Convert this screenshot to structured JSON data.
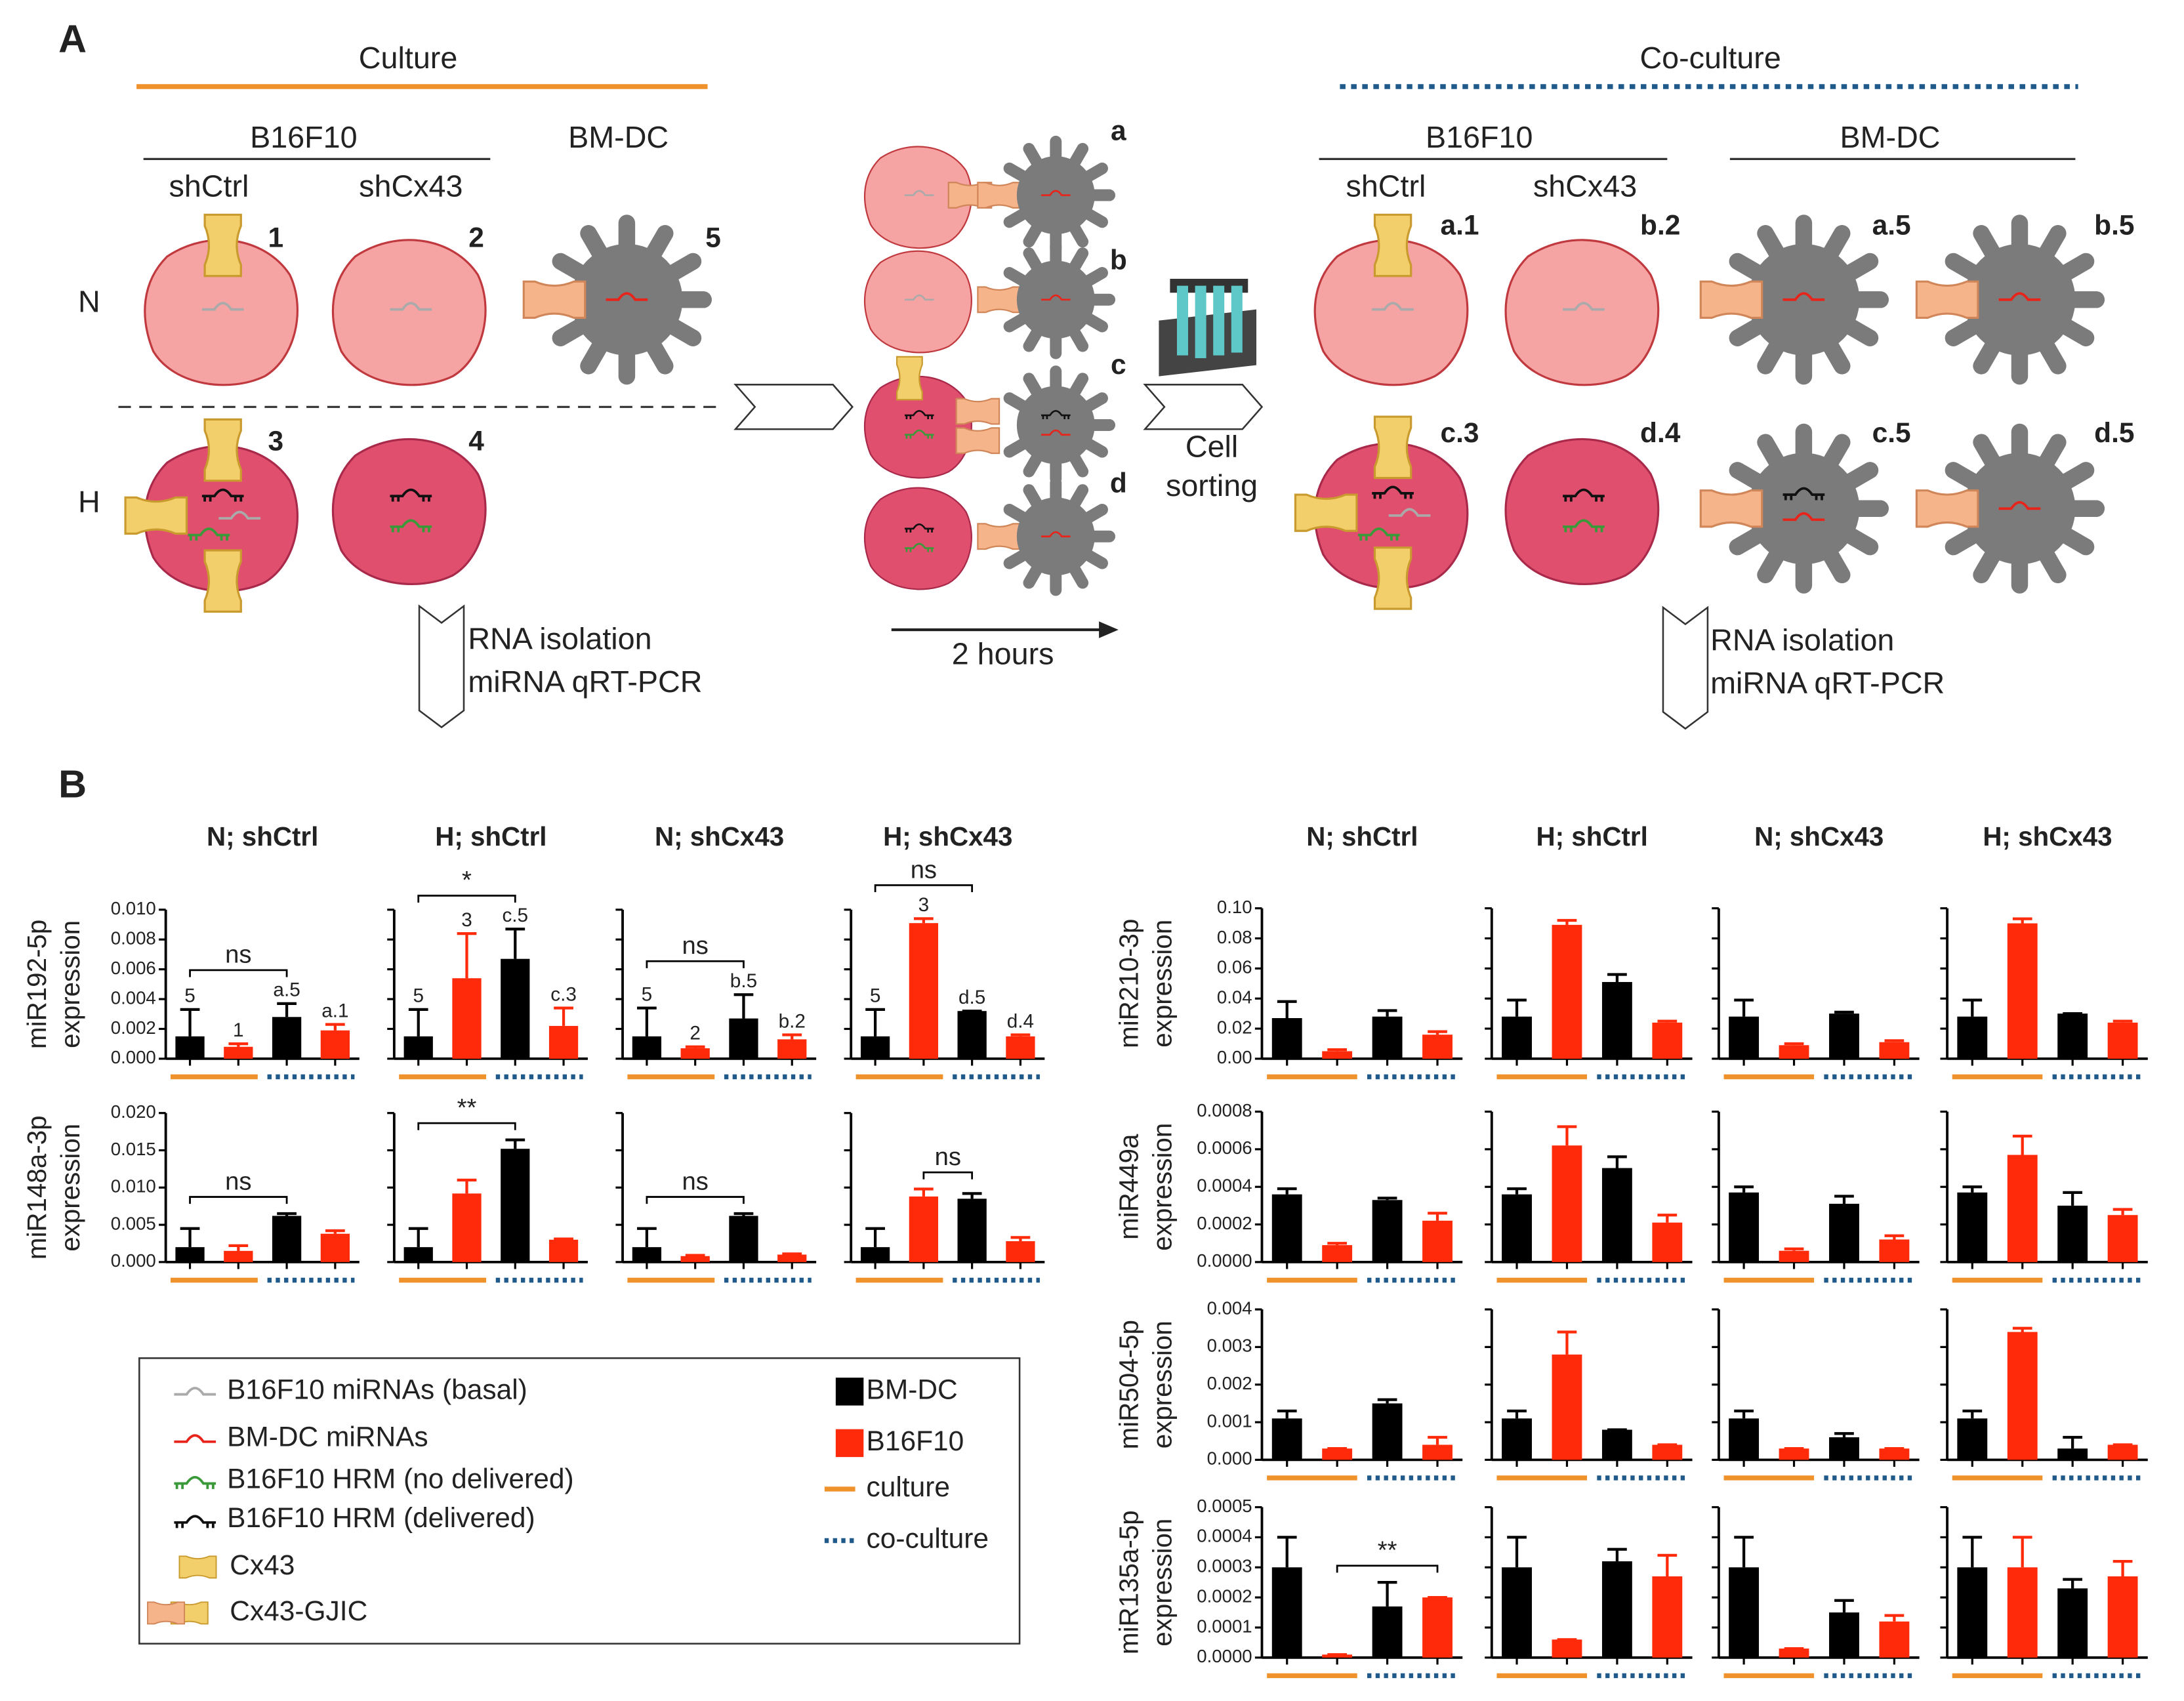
{
  "panel_a": {
    "label": "A",
    "culture": "Culture",
    "coculture": "Co-culture",
    "culture_groups": {
      "tumor": "B16F10",
      "dc": "BM-DC",
      "shctrl": "shCtrl",
      "shcx43": "shCx43"
    },
    "conditions": [
      "N",
      "H"
    ],
    "culture_ids": [
      "1",
      "2",
      "5",
      "3",
      "4"
    ],
    "interaction_ids": [
      "a",
      "b",
      "c",
      "d"
    ],
    "interaction_time": "2 hours",
    "sorting": [
      "Cell",
      "sorting"
    ],
    "coculture_groups": {
      "tumor": "B16F10",
      "dc": "BM-DC",
      "shctrl": "shCtrl",
      "shcx43": "shCx43"
    },
    "coculture_ids": [
      "a.1",
      "b.2",
      "a.5",
      "b.5",
      "c.3",
      "d.4",
      "c.5",
      "d.5"
    ],
    "analysis": [
      "RNA isolation",
      "miRNA qRT-PCR"
    ]
  },
  "panel_b": {
    "label": "B",
    "legend": {
      "diagram": [
        "B16F10 miRNAs (basal)",
        "BM-DC miRNAs",
        "B16F10 HRM (no delivered)",
        "B16F10 HRM (delivered)",
        "Cx43",
        "Cx43-GJIC"
      ],
      "marks": [
        {
          "label": "BM-DC",
          "color": "#000000"
        },
        {
          "label": "B16F10",
          "color": "#ff2a0a"
        },
        {
          "label": "culture",
          "color": "#f0922b"
        },
        {
          "label": "co-culture",
          "color": "#1f5a8a"
        }
      ]
    }
  },
  "chart_data": [
    {
      "type": "bar",
      "title": "N; shCtrl",
      "ylabel": [
        "miR192-5p",
        "expression"
      ],
      "ylim": [
        0,
        0.01
      ],
      "yticks": [
        {
          "value": 0,
          "label": "0.000"
        },
        0.002,
        0.004,
        0.006,
        0.008,
        {
          "value": 0.01,
          "label": "0.010"
        }
      ],
      "values": [
        0.0015,
        0.0008,
        0.0028,
        0.0019
      ],
      "errors": [
        0.0018,
        0.0002,
        0.0009,
        0.0004
      ],
      "colors": [
        "#000000",
        "#ff2a0a",
        "#000000",
        "#ff2a0a"
      ],
      "bar_labels": [
        "5",
        "1",
        "a.5",
        "a.1"
      ],
      "brackets": [
        {
          "from": 0,
          "to": 2,
          "label": "ns"
        }
      ]
    },
    {
      "type": "bar",
      "title": "H; shCtrl",
      "ylim": [
        0,
        0.01
      ],
      "yticks": [
        0,
        0.002,
        0.004,
        0.006,
        0.008,
        0.01
      ],
      "values": [
        0.0015,
        0.0054,
        0.0067,
        0.0022
      ],
      "errors": [
        0.0018,
        0.003,
        0.002,
        0.0012
      ],
      "colors": [
        "#000000",
        "#ff2a0a",
        "#000000",
        "#ff2a0a"
      ],
      "bar_labels": [
        "5",
        "3",
        "c.5",
        "c.3"
      ],
      "brackets": [
        {
          "from": 0,
          "to": 2,
          "label": "*"
        }
      ]
    },
    {
      "type": "bar",
      "title": "N; shCx43",
      "ylim": [
        0,
        0.01
      ],
      "yticks": [
        0,
        0.002,
        0.004,
        0.006,
        0.008,
        0.01
      ],
      "values": [
        0.0015,
        0.0007,
        0.0027,
        0.0013
      ],
      "errors": [
        0.0019,
        0.0001,
        0.0016,
        0.0003
      ],
      "colors": [
        "#000000",
        "#ff2a0a",
        "#000000",
        "#ff2a0a"
      ],
      "bar_labels": [
        "5",
        "2",
        "b.5",
        "b.2"
      ],
      "brackets": [
        {
          "from": 0,
          "to": 2,
          "label": "ns"
        }
      ]
    },
    {
      "type": "bar",
      "title": "H; shCx43",
      "ylim": [
        0,
        0.01
      ],
      "yticks": [
        0,
        0.002,
        0.004,
        0.006,
        0.008,
        0.01
      ],
      "values": [
        0.0015,
        0.0091,
        0.0032,
        0.0015
      ],
      "errors": [
        0.0018,
        0.0003,
        0,
        0.0001
      ],
      "colors": [
        "#000000",
        "#ff2a0a",
        "#000000",
        "#ff2a0a"
      ],
      "bar_labels": [
        "5",
        "3",
        "d.5",
        "d.4"
      ],
      "brackets": [
        {
          "from": 0,
          "to": 2,
          "label": "ns"
        }
      ]
    },
    {
      "type": "bar",
      "ylabel": [
        "miR148a-3p",
        "expression"
      ],
      "ylim": [
        0,
        0.02
      ],
      "yticks": [
        {
          "value": 0,
          "label": "0.000"
        },
        0.005,
        {
          "value": 0.01,
          "label": "0.010"
        },
        0.015,
        {
          "value": 0.02,
          "label": "0.020"
        }
      ],
      "values": [
        0.002,
        0.0015,
        0.0062,
        0.0038
      ],
      "errors": [
        0.0025,
        0.0007,
        0.0003,
        0.0004
      ],
      "colors": [
        "#000000",
        "#ff2a0a",
        "#000000",
        "#ff2a0a"
      ],
      "brackets": [
        {
          "from": 0,
          "to": 2,
          "label": "ns"
        }
      ]
    },
    {
      "type": "bar",
      "ylim": [
        0,
        0.02
      ],
      "yticks": [
        0,
        0.005,
        0.01,
        0.015,
        0.02
      ],
      "values": [
        0.002,
        0.0092,
        0.0152,
        0.003
      ],
      "errors": [
        0.0025,
        0.0018,
        0.0012,
        0.0001
      ],
      "colors": [
        "#000000",
        "#ff2a0a",
        "#000000",
        "#ff2a0a"
      ],
      "brackets": [
        {
          "from": 0,
          "to": 2,
          "label": "**"
        }
      ]
    },
    {
      "type": "bar",
      "ylim": [
        0,
        0.02
      ],
      "yticks": [
        0,
        0.005,
        0.01,
        0.015,
        0.02
      ],
      "values": [
        0.002,
        0.0008,
        0.0062,
        0.001
      ],
      "errors": [
        0.0025,
        0.0001,
        0.0003,
        0.0001
      ],
      "colors": [
        "#000000",
        "#ff2a0a",
        "#000000",
        "#ff2a0a"
      ],
      "brackets": [
        {
          "from": 0,
          "to": 2,
          "label": "ns"
        }
      ]
    },
    {
      "type": "bar",
      "ylim": [
        0,
        0.02
      ],
      "yticks": [
        0,
        0.005,
        0.01,
        0.015,
        0.02
      ],
      "values": [
        0.002,
        0.0088,
        0.0085,
        0.0028
      ],
      "errors": [
        0.0025,
        0.001,
        0.0007,
        0.0005
      ],
      "colors": [
        "#000000",
        "#ff2a0a",
        "#000000",
        "#ff2a0a"
      ],
      "brackets": [
        {
          "from": 1,
          "to": 2,
          "label": "ns"
        }
      ]
    },
    {
      "type": "bar",
      "title": "N; shCtrl",
      "ylabel": [
        "miR210-3p",
        "expression"
      ],
      "ylim": [
        0,
        0.1
      ],
      "yticks": [
        {
          "value": 0,
          "label": "0.00"
        },
        0.02,
        0.04,
        0.06,
        0.08,
        {
          "value": 0.1,
          "label": "0.10"
        }
      ],
      "values": [
        0.027,
        0.005,
        0.028,
        0.016
      ],
      "errors": [
        0.011,
        0.001,
        0.004,
        0.002
      ],
      "colors": [
        "#000000",
        "#ff2a0a",
        "#000000",
        "#ff2a0a"
      ]
    },
    {
      "type": "bar",
      "title": "H; shCtrl",
      "ylim": [
        0,
        0.1
      ],
      "yticks": [
        0,
        0.02,
        0.04,
        0.06,
        0.08,
        0.1
      ],
      "values": [
        0.028,
        0.089,
        0.051,
        0.024
      ],
      "errors": [
        0.011,
        0.003,
        0.005,
        0.001
      ],
      "colors": [
        "#000000",
        "#ff2a0a",
        "#000000",
        "#ff2a0a"
      ]
    },
    {
      "type": "bar",
      "title": "N; shCx43",
      "ylim": [
        0,
        0.1
      ],
      "yticks": [
        0,
        0.02,
        0.04,
        0.06,
        0.08,
        0.1
      ],
      "values": [
        0.028,
        0.009,
        0.03,
        0.011
      ],
      "errors": [
        0.011,
        0.001,
        0.001,
        0.001
      ],
      "colors": [
        "#000000",
        "#ff2a0a",
        "#000000",
        "#ff2a0a"
      ]
    },
    {
      "type": "bar",
      "title": "H; shCx43",
      "ylim": [
        0,
        0.1
      ],
      "yticks": [
        0,
        0.02,
        0.04,
        0.06,
        0.08,
        0.1
      ],
      "values": [
        0.028,
        0.09,
        0.03,
        0.024
      ],
      "errors": [
        0.011,
        0.003,
        0,
        0.001
      ],
      "colors": [
        "#000000",
        "#ff2a0a",
        "#000000",
        "#ff2a0a"
      ]
    },
    {
      "type": "bar",
      "ylabel": [
        "miR449a",
        "expression"
      ],
      "ylim": [
        0,
        0.0008
      ],
      "yticks": [
        {
          "value": 0,
          "label": "0.0000"
        },
        0.0002,
        0.0004,
        0.0006,
        0.0008
      ],
      "values": [
        0.00036,
        9e-05,
        0.00033,
        0.00022
      ],
      "errors": [
        3e-05,
        1e-05,
        1e-05,
        4e-05
      ],
      "colors": [
        "#000000",
        "#ff2a0a",
        "#000000",
        "#ff2a0a"
      ]
    },
    {
      "type": "bar",
      "ylim": [
        0,
        0.0008
      ],
      "yticks": [
        0,
        0.0002,
        0.0004,
        0.0006,
        0.0008
      ],
      "values": [
        0.00036,
        0.00062,
        0.0005,
        0.00021
      ],
      "errors": [
        3e-05,
        0.0001,
        6e-05,
        4e-05
      ],
      "colors": [
        "#000000",
        "#ff2a0a",
        "#000000",
        "#ff2a0a"
      ]
    },
    {
      "type": "bar",
      "ylim": [
        0,
        0.0008
      ],
      "yticks": [
        0,
        0.0002,
        0.0004,
        0.0006,
        0.0008
      ],
      "values": [
        0.00037,
        6e-05,
        0.00031,
        0.00012
      ],
      "errors": [
        3e-05,
        1e-05,
        4e-05,
        2e-05
      ],
      "colors": [
        "#000000",
        "#ff2a0a",
        "#000000",
        "#ff2a0a"
      ]
    },
    {
      "type": "bar",
      "ylim": [
        0,
        0.0008
      ],
      "yticks": [
        0,
        0.0002,
        0.0004,
        0.0006,
        0.0008
      ],
      "values": [
        0.00037,
        0.00057,
        0.0003,
        0.00025
      ],
      "errors": [
        3e-05,
        0.0001,
        7e-05,
        3e-05
      ],
      "colors": [
        "#000000",
        "#ff2a0a",
        "#000000",
        "#ff2a0a"
      ]
    },
    {
      "type": "bar",
      "ylabel": [
        "miR504-5p",
        "expression"
      ],
      "ylim": [
        0,
        0.004
      ],
      "yticks": [
        {
          "value": 0,
          "label": "0.000"
        },
        0.001,
        0.002,
        0.003,
        0.004
      ],
      "values": [
        0.0011,
        0.0003,
        0.0015,
        0.0004
      ],
      "errors": [
        0.0002,
        0,
        0.0001,
        0.0002
      ],
      "colors": [
        "#000000",
        "#ff2a0a",
        "#000000",
        "#ff2a0a"
      ]
    },
    {
      "type": "bar",
      "ylim": [
        0,
        0.004
      ],
      "yticks": [
        0,
        0.001,
        0.002,
        0.003,
        0.004
      ],
      "values": [
        0.0011,
        0.0028,
        0.0008,
        0.0004
      ],
      "errors": [
        0.0002,
        0.0006,
        0,
        0
      ],
      "colors": [
        "#000000",
        "#ff2a0a",
        "#000000",
        "#ff2a0a"
      ]
    },
    {
      "type": "bar",
      "ylim": [
        0,
        0.004
      ],
      "yticks": [
        0,
        0.001,
        0.002,
        0.003,
        0.004
      ],
      "values": [
        0.0011,
        0.0003,
        0.0006,
        0.0003
      ],
      "errors": [
        0.0002,
        0,
        0.0001,
        0
      ],
      "colors": [
        "#000000",
        "#ff2a0a",
        "#000000",
        "#ff2a0a"
      ]
    },
    {
      "type": "bar",
      "ylim": [
        0,
        0.004
      ],
      "yticks": [
        0,
        0.001,
        0.002,
        0.003,
        0.004
      ],
      "values": [
        0.0011,
        0.0034,
        0.0003,
        0.0004
      ],
      "errors": [
        0.0002,
        0.0001,
        0.0003,
        0
      ],
      "colors": [
        "#000000",
        "#ff2a0a",
        "#000000",
        "#ff2a0a"
      ]
    },
    {
      "type": "bar",
      "ylabel": [
        "miR135a-5p",
        "expression"
      ],
      "ylim": [
        0,
        0.0005
      ],
      "yticks": [
        {
          "value": 0,
          "label": "0.0000"
        },
        0.0001,
        0.0002,
        0.0003,
        0.0004,
        0.0005
      ],
      "values": [
        0.0003,
        1e-05,
        0.00017,
        0.0002
      ],
      "errors": [
        0.0001,
        0,
        8e-05,
        0
      ],
      "colors": [
        "#000000",
        "#ff2a0a",
        "#000000",
        "#ff2a0a"
      ],
      "brackets": [
        {
          "from": 1,
          "to": 3,
          "label": "**"
        }
      ]
    },
    {
      "type": "bar",
      "ylim": [
        0,
        0.0005
      ],
      "yticks": [
        0,
        0.0001,
        0.0002,
        0.0003,
        0.0004,
        0.0005
      ],
      "values": [
        0.0003,
        6e-05,
        0.00032,
        0.00027
      ],
      "errors": [
        0.0001,
        0,
        4e-05,
        7e-05
      ],
      "colors": [
        "#000000",
        "#ff2a0a",
        "#000000",
        "#ff2a0a"
      ]
    },
    {
      "type": "bar",
      "ylim": [
        0,
        0.0005
      ],
      "yticks": [
        0,
        0.0001,
        0.0002,
        0.0003,
        0.0004,
        0.0005
      ],
      "values": [
        0.0003,
        3e-05,
        0.00015,
        0.00012
      ],
      "errors": [
        0.0001,
        0,
        4e-05,
        2e-05
      ],
      "colors": [
        "#000000",
        "#ff2a0a",
        "#000000",
        "#ff2a0a"
      ]
    },
    {
      "type": "bar",
      "ylim": [
        0,
        0.0005
      ],
      "yticks": [
        0,
        0.0001,
        0.0002,
        0.0003,
        0.0004,
        0.0005
      ],
      "values": [
        0.0003,
        0.0003,
        0.00023,
        0.00027
      ],
      "errors": [
        0.0001,
        0.0001,
        3e-05,
        5e-05
      ],
      "colors": [
        "#000000",
        "#ff2a0a",
        "#000000",
        "#ff2a0a"
      ]
    }
  ]
}
